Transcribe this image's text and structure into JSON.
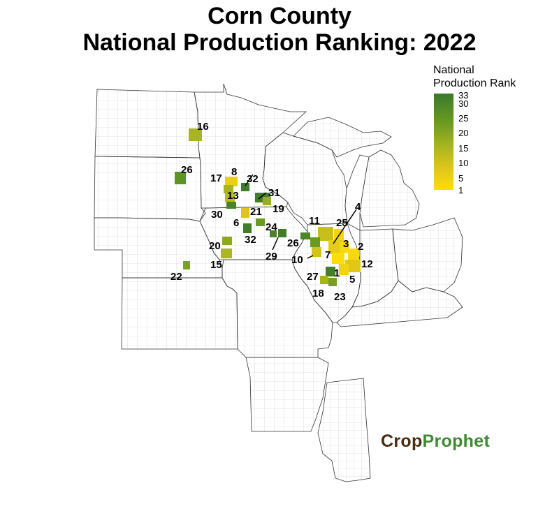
{
  "title_line1": "Corn County",
  "title_line2": "National Production Ranking: 2022",
  "legend": {
    "title_line1": "National",
    "title_line2": "Production Rank",
    "ticks": [
      "33",
      "30",
      "25",
      "20",
      "15",
      "10",
      "5",
      "1"
    ],
    "color_high_rank": "#3a7a2a",
    "color_low_rank": "#fcdd0a"
  },
  "counties": [
    {
      "rank": "16",
      "state": "North Dakota"
    },
    {
      "rank": "26",
      "state": "South Dakota"
    },
    {
      "rank": "8",
      "state": "Minnesota"
    },
    {
      "rank": "17",
      "state": "Minnesota"
    },
    {
      "rank": "32",
      "state": "Minnesota"
    },
    {
      "rank": "13",
      "state": "Minnesota"
    },
    {
      "rank": "31",
      "state": "Minnesota"
    },
    {
      "rank": "30",
      "state": "Iowa"
    },
    {
      "rank": "21",
      "state": "Iowa"
    },
    {
      "rank": "19",
      "state": "Iowa"
    },
    {
      "rank": "6",
      "state": "Iowa"
    },
    {
      "rank": "24",
      "state": "Iowa"
    },
    {
      "rank": "32",
      "state": "Iowa"
    },
    {
      "rank": "20",
      "state": "Iowa"
    },
    {
      "rank": "29",
      "state": "Iowa"
    },
    {
      "rank": "15",
      "state": "Iowa"
    },
    {
      "rank": "22",
      "state": "Kansas"
    },
    {
      "rank": "11",
      "state": "Illinois"
    },
    {
      "rank": "25",
      "state": "Illinois"
    },
    {
      "rank": "4",
      "state": "Illinois"
    },
    {
      "rank": "26",
      "state": "Illinois"
    },
    {
      "rank": "10",
      "state": "Illinois"
    },
    {
      "rank": "7",
      "state": "Illinois"
    },
    {
      "rank": "3",
      "state": "Illinois"
    },
    {
      "rank": "2",
      "state": "Illinois"
    },
    {
      "rank": "12",
      "state": "Illinois"
    },
    {
      "rank": "1",
      "state": "Illinois"
    },
    {
      "rank": "27",
      "state": "Illinois"
    },
    {
      "rank": "5",
      "state": "Illinois"
    },
    {
      "rank": "18",
      "state": "Illinois"
    },
    {
      "rank": "23",
      "state": "Illinois"
    }
  ],
  "logo": {
    "part1": "Crop",
    "part2": "Prophet"
  }
}
